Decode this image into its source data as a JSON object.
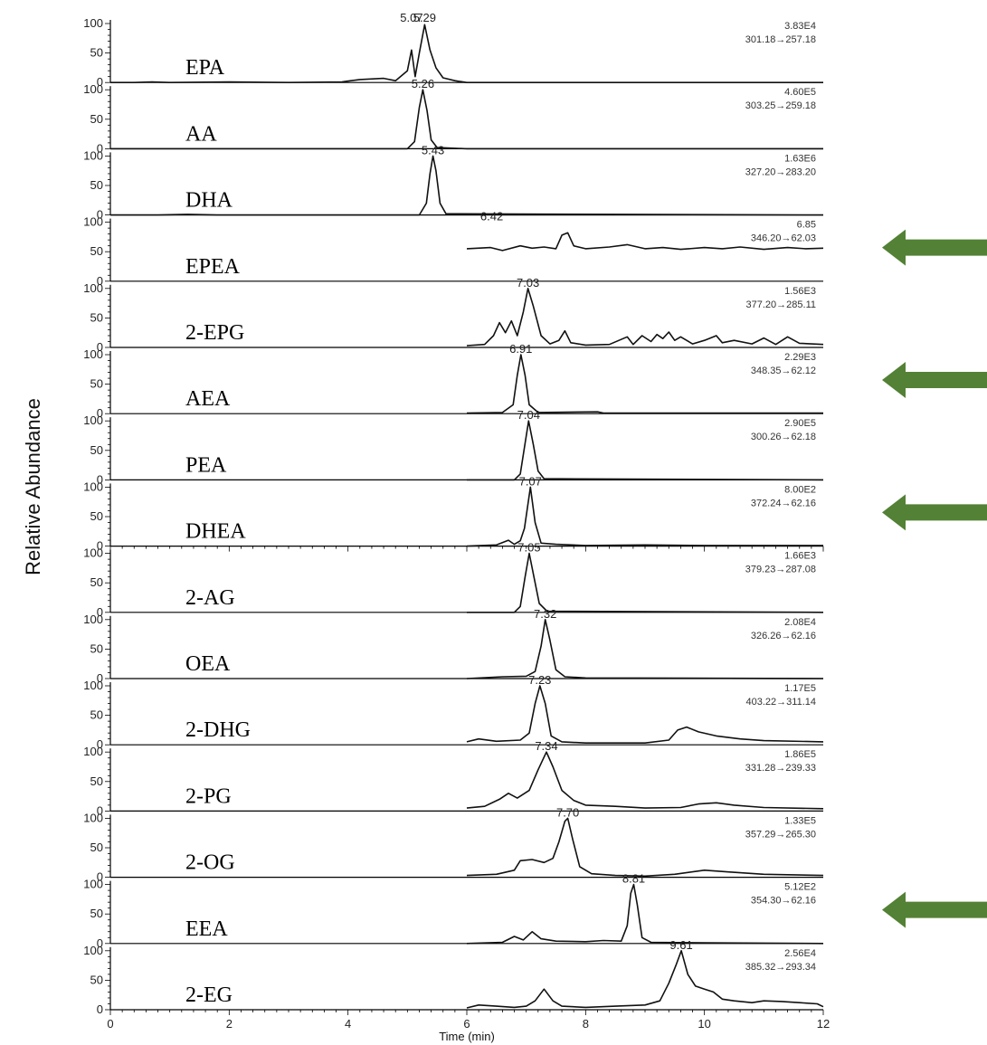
{
  "chart_data": {
    "type": "line",
    "xlabel": "Time (min)",
    "ylabel": "Relative Abundance",
    "xlim": [
      0,
      12
    ],
    "ylim": [
      0,
      100
    ],
    "x_ticks": [
      0,
      2,
      4,
      6,
      8,
      10,
      12
    ],
    "y_ticks": [
      0,
      50,
      100
    ],
    "arrow_color": "#538135",
    "series": [
      {
        "name": "EPA",
        "intensity": "3.83E4",
        "transition": "301.18→257.18",
        "arrow": false,
        "peak_labels": [
          {
            "x": 5.07,
            "text": "5.07"
          },
          {
            "x": 5.29,
            "text": "5.29"
          }
        ],
        "points": [
          [
            0,
            0
          ],
          [
            0.4,
            0
          ],
          [
            0.7,
            1
          ],
          [
            1.0,
            0
          ],
          [
            2.0,
            1
          ],
          [
            3.0,
            0
          ],
          [
            3.9,
            1
          ],
          [
            4.2,
            5
          ],
          [
            4.6,
            7
          ],
          [
            4.8,
            3
          ],
          [
            5.0,
            20
          ],
          [
            5.07,
            55
          ],
          [
            5.13,
            10
          ],
          [
            5.2,
            50
          ],
          [
            5.29,
            98
          ],
          [
            5.38,
            55
          ],
          [
            5.48,
            25
          ],
          [
            5.6,
            8
          ],
          [
            5.8,
            3
          ],
          [
            6.0,
            0
          ],
          [
            12,
            0
          ]
        ]
      },
      {
        "name": "AA",
        "intensity": "4.60E5",
        "transition": "303.25→259.18",
        "arrow": false,
        "peak_labels": [
          {
            "x": 5.26,
            "text": "5.26"
          }
        ],
        "points": [
          [
            0,
            0
          ],
          [
            5.0,
            0
          ],
          [
            5.12,
            12
          ],
          [
            5.2,
            70
          ],
          [
            5.26,
            100
          ],
          [
            5.33,
            65
          ],
          [
            5.4,
            15
          ],
          [
            5.5,
            2
          ],
          [
            6.0,
            0
          ],
          [
            12,
            0
          ]
        ]
      },
      {
        "name": "DHA",
        "intensity": "1.63E6",
        "transition": "327.20→283.20",
        "arrow": false,
        "peak_labels": [
          {
            "x": 5.43,
            "text": "5.43"
          }
        ],
        "points": [
          [
            0,
            0
          ],
          [
            0.8,
            0
          ],
          [
            1.3,
            1
          ],
          [
            1.8,
            0
          ],
          [
            5.2,
            0
          ],
          [
            5.32,
            20
          ],
          [
            5.38,
            70
          ],
          [
            5.43,
            100
          ],
          [
            5.48,
            75
          ],
          [
            5.55,
            20
          ],
          [
            5.65,
            2
          ],
          [
            12,
            0
          ]
        ]
      },
      {
        "name": "EPEA",
        "intensity": "6.85",
        "transition": "346.20→62.03",
        "arrow": true,
        "peak_labels": [
          {
            "x": 6.42,
            "text": "6.42"
          }
        ],
        "points": [
          [
            6.0,
            55
          ],
          [
            6.4,
            57
          ],
          [
            6.6,
            52
          ],
          [
            6.9,
            60
          ],
          [
            7.1,
            56
          ],
          [
            7.3,
            58
          ],
          [
            7.5,
            55
          ],
          [
            7.6,
            78
          ],
          [
            7.7,
            82
          ],
          [
            7.8,
            60
          ],
          [
            8.0,
            55
          ],
          [
            8.4,
            58
          ],
          [
            8.7,
            62
          ],
          [
            9.0,
            55
          ],
          [
            9.3,
            57
          ],
          [
            9.6,
            54
          ],
          [
            10.0,
            57
          ],
          [
            10.3,
            55
          ],
          [
            10.6,
            58
          ],
          [
            11.0,
            54
          ],
          [
            11.4,
            57
          ],
          [
            11.7,
            55
          ],
          [
            12.0,
            56
          ]
        ]
      },
      {
        "name": "2-EPG",
        "intensity": "1.56E3",
        "transition": "377.20→285.11",
        "arrow": false,
        "peak_labels": [
          {
            "x": 7.03,
            "text": "7.03"
          }
        ],
        "points": [
          [
            6.0,
            3
          ],
          [
            6.3,
            5
          ],
          [
            6.45,
            20
          ],
          [
            6.55,
            42
          ],
          [
            6.65,
            25
          ],
          [
            6.75,
            45
          ],
          [
            6.85,
            20
          ],
          [
            6.95,
            60
          ],
          [
            7.03,
            100
          ],
          [
            7.12,
            70
          ],
          [
            7.25,
            20
          ],
          [
            7.4,
            6
          ],
          [
            7.55,
            12
          ],
          [
            7.65,
            28
          ],
          [
            7.75,
            8
          ],
          [
            8.0,
            4
          ],
          [
            8.4,
            5
          ],
          [
            8.7,
            18
          ],
          [
            8.8,
            5
          ],
          [
            8.95,
            20
          ],
          [
            9.1,
            10
          ],
          [
            9.2,
            22
          ],
          [
            9.3,
            15
          ],
          [
            9.4,
            26
          ],
          [
            9.5,
            12
          ],
          [
            9.6,
            18
          ],
          [
            9.8,
            6
          ],
          [
            10.0,
            12
          ],
          [
            10.2,
            20
          ],
          [
            10.3,
            8
          ],
          [
            10.5,
            12
          ],
          [
            10.8,
            6
          ],
          [
            11.0,
            16
          ],
          [
            11.2,
            5
          ],
          [
            11.4,
            18
          ],
          [
            11.6,
            7
          ],
          [
            11.8,
            6
          ],
          [
            12.0,
            5
          ]
        ]
      },
      {
        "name": "AEA",
        "intensity": "2.29E3",
        "transition": "348.35→62.12",
        "arrow": true,
        "peak_labels": [
          {
            "x": 6.91,
            "text": "6.91"
          }
        ],
        "points": [
          [
            6.0,
            1
          ],
          [
            6.6,
            2
          ],
          [
            6.78,
            15
          ],
          [
            6.85,
            65
          ],
          [
            6.91,
            100
          ],
          [
            6.98,
            65
          ],
          [
            7.05,
            15
          ],
          [
            7.2,
            2
          ],
          [
            8.2,
            3
          ],
          [
            8.3,
            1
          ],
          [
            12.0,
            1
          ]
        ]
      },
      {
        "name": "PEA",
        "intensity": "2.90E5",
        "transition": "300.26→62.18",
        "arrow": false,
        "peak_labels": [
          {
            "x": 7.04,
            "text": "7.04"
          }
        ],
        "points": [
          [
            6.0,
            0
          ],
          [
            6.8,
            0
          ],
          [
            6.9,
            10
          ],
          [
            6.97,
            55
          ],
          [
            7.04,
            100
          ],
          [
            7.12,
            60
          ],
          [
            7.2,
            15
          ],
          [
            7.3,
            2
          ],
          [
            12.0,
            0
          ]
        ]
      },
      {
        "name": "DHEA",
        "intensity": "8.00E2",
        "transition": "372.24→62.16",
        "arrow": true,
        "peak_labels": [
          {
            "x": 7.07,
            "text": "7.07"
          }
        ],
        "points": [
          [
            6.0,
            0
          ],
          [
            6.5,
            2
          ],
          [
            6.7,
            10
          ],
          [
            6.8,
            3
          ],
          [
            6.9,
            9
          ],
          [
            6.97,
            30
          ],
          [
            7.07,
            100
          ],
          [
            7.15,
            40
          ],
          [
            7.25,
            5
          ],
          [
            7.5,
            3
          ],
          [
            8.0,
            1
          ],
          [
            9.0,
            2
          ],
          [
            10.0,
            1
          ],
          [
            12.0,
            1
          ]
        ]
      },
      {
        "name": "2-AG",
        "intensity": "1.66E3",
        "transition": "379.23→287.08",
        "arrow": false,
        "peak_labels": [
          {
            "x": 7.05,
            "text": "7.05"
          }
        ],
        "points": [
          [
            6.0,
            0
          ],
          [
            6.8,
            0
          ],
          [
            6.9,
            10
          ],
          [
            6.98,
            60
          ],
          [
            7.05,
            100
          ],
          [
            7.13,
            60
          ],
          [
            7.22,
            15
          ],
          [
            7.35,
            2
          ],
          [
            12.0,
            0
          ]
        ]
      },
      {
        "name": "OEA",
        "intensity": "2.08E4",
        "transition": "326.26→62.16",
        "arrow": false,
        "peak_labels": [
          {
            "x": 7.32,
            "text": "7.32"
          }
        ],
        "points": [
          [
            6.0,
            0
          ],
          [
            6.6,
            3
          ],
          [
            7.0,
            4
          ],
          [
            7.15,
            12
          ],
          [
            7.25,
            55
          ],
          [
            7.32,
            100
          ],
          [
            7.4,
            65
          ],
          [
            7.5,
            15
          ],
          [
            7.65,
            3
          ],
          [
            8.0,
            1
          ],
          [
            12.0,
            0
          ]
        ]
      },
      {
        "name": "2-DHG",
        "intensity": "1.17E5",
        "transition": "403.22→311.14",
        "arrow": false,
        "peak_labels": [
          {
            "x": 7.23,
            "text": "7.23"
          }
        ],
        "points": [
          [
            6.0,
            5
          ],
          [
            6.2,
            10
          ],
          [
            6.5,
            6
          ],
          [
            6.9,
            8
          ],
          [
            7.05,
            20
          ],
          [
            7.15,
            70
          ],
          [
            7.23,
            100
          ],
          [
            7.32,
            70
          ],
          [
            7.42,
            15
          ],
          [
            7.6,
            5
          ],
          [
            8.0,
            3
          ],
          [
            9.0,
            3
          ],
          [
            9.4,
            8
          ],
          [
            9.55,
            25
          ],
          [
            9.7,
            30
          ],
          [
            9.9,
            22
          ],
          [
            10.2,
            15
          ],
          [
            10.6,
            10
          ],
          [
            11.0,
            7
          ],
          [
            12.0,
            5
          ]
        ]
      },
      {
        "name": "2-PG",
        "intensity": "1.86E5",
        "transition": "331.28→239.33",
        "arrow": false,
        "peak_labels": [
          {
            "x": 7.34,
            "text": "7.34"
          }
        ],
        "points": [
          [
            6.0,
            5
          ],
          [
            6.3,
            8
          ],
          [
            6.55,
            20
          ],
          [
            6.7,
            30
          ],
          [
            6.85,
            22
          ],
          [
            7.05,
            35
          ],
          [
            7.2,
            70
          ],
          [
            7.34,
            100
          ],
          [
            7.45,
            75
          ],
          [
            7.6,
            35
          ],
          [
            7.8,
            18
          ],
          [
            8.0,
            10
          ],
          [
            8.5,
            8
          ],
          [
            9.0,
            5
          ],
          [
            9.6,
            6
          ],
          [
            9.9,
            12
          ],
          [
            10.2,
            14
          ],
          [
            10.5,
            10
          ],
          [
            11.0,
            6
          ],
          [
            12.0,
            4
          ]
        ]
      },
      {
        "name": "2-OG",
        "intensity": "1.33E5",
        "transition": "357.29→265.30",
        "arrow": false,
        "peak_labels": [
          {
            "x": 7.7,
            "text": "7.70"
          }
        ],
        "points": [
          [
            6.0,
            3
          ],
          [
            6.5,
            5
          ],
          [
            6.8,
            12
          ],
          [
            6.9,
            28
          ],
          [
            7.1,
            30
          ],
          [
            7.3,
            25
          ],
          [
            7.45,
            32
          ],
          [
            7.55,
            60
          ],
          [
            7.65,
            95
          ],
          [
            7.7,
            100
          ],
          [
            7.78,
            65
          ],
          [
            7.9,
            18
          ],
          [
            8.1,
            6
          ],
          [
            8.5,
            3
          ],
          [
            9.0,
            2
          ],
          [
            9.5,
            5
          ],
          [
            10.0,
            12
          ],
          [
            10.4,
            9
          ],
          [
            11.0,
            5
          ],
          [
            12.0,
            3
          ]
        ]
      },
      {
        "name": "EEA",
        "intensity": "5.12E2",
        "transition": "354.30→62.16",
        "arrow": true,
        "peak_labels": [
          {
            "x": 8.81,
            "text": "8.81"
          }
        ],
        "points": [
          [
            6.0,
            0
          ],
          [
            6.6,
            2
          ],
          [
            6.8,
            12
          ],
          [
            6.95,
            6
          ],
          [
            7.1,
            20
          ],
          [
            7.25,
            8
          ],
          [
            7.5,
            4
          ],
          [
            8.0,
            3
          ],
          [
            8.3,
            5
          ],
          [
            8.6,
            4
          ],
          [
            8.7,
            30
          ],
          [
            8.76,
            85
          ],
          [
            8.81,
            100
          ],
          [
            8.87,
            65
          ],
          [
            8.95,
            10
          ],
          [
            9.1,
            2
          ],
          [
            10.0,
            1
          ],
          [
            12.0,
            0
          ]
        ]
      },
      {
        "name": "2-EG",
        "intensity": "2.56E4",
        "transition": "385.32→293.34",
        "arrow": false,
        "peak_labels": [
          {
            "x": 9.61,
            "text": "9.61"
          }
        ],
        "points": [
          [
            6.0,
            3
          ],
          [
            6.2,
            8
          ],
          [
            6.5,
            6
          ],
          [
            6.8,
            4
          ],
          [
            7.0,
            6
          ],
          [
            7.15,
            15
          ],
          [
            7.3,
            35
          ],
          [
            7.45,
            15
          ],
          [
            7.6,
            6
          ],
          [
            8.0,
            4
          ],
          [
            8.5,
            6
          ],
          [
            9.0,
            8
          ],
          [
            9.25,
            15
          ],
          [
            9.4,
            45
          ],
          [
            9.52,
            75
          ],
          [
            9.61,
            100
          ],
          [
            9.72,
            60
          ],
          [
            9.85,
            40
          ],
          [
            10.0,
            35
          ],
          [
            10.15,
            30
          ],
          [
            10.3,
            18
          ],
          [
            10.5,
            15
          ],
          [
            10.8,
            12
          ],
          [
            11.0,
            15
          ],
          [
            11.3,
            14
          ],
          [
            11.6,
            12
          ],
          [
            11.9,
            10
          ],
          [
            12.0,
            5
          ]
        ]
      }
    ]
  }
}
